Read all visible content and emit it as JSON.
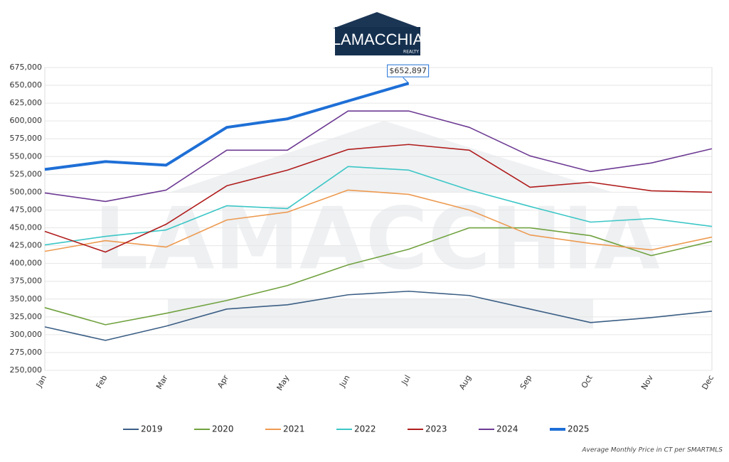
{
  "logo": {
    "name": "LAMACCHIA",
    "sub": "REALTY"
  },
  "chart_data": {
    "type": "line",
    "categories": [
      "Jan",
      "Feb",
      "Mar",
      "Apr",
      "May",
      "Jun",
      "Jul",
      "Aug",
      "Sep",
      "Oct",
      "Nov",
      "Dec"
    ],
    "ylim": [
      250000,
      675000
    ],
    "yticks": [
      {
        "value": 250000,
        "label": "250,000"
      },
      {
        "value": 275000,
        "label": "275,000"
      },
      {
        "value": 300000,
        "label": "300,000"
      },
      {
        "value": 325000,
        "label": "325,000"
      },
      {
        "value": 350000,
        "label": "350,000"
      },
      {
        "value": 375000,
        "label": "375,000"
      },
      {
        "value": 400000,
        "label": "400,000"
      },
      {
        "value": 425000,
        "label": "425,000"
      },
      {
        "value": 450000,
        "label": "450,000"
      },
      {
        "value": 475000,
        "label": "475,000"
      },
      {
        "value": 500000,
        "label": "500,000"
      },
      {
        "value": 525000,
        "label": "525,000"
      },
      {
        "value": 550000,
        "label": "550,000"
      },
      {
        "value": 575000,
        "label": "575,000"
      },
      {
        "value": 600000,
        "label": "600,000"
      },
      {
        "value": 625000,
        "label": "625,000"
      },
      {
        "value": 650000,
        "label": "650,000"
      },
      {
        "value": 675000,
        "label": "675,000"
      }
    ],
    "grid": true,
    "legend": "bottom",
    "series": [
      {
        "name": "2019",
        "color": "#3b5e84",
        "values": [
          311000,
          292000,
          312000,
          336000,
          342000,
          356000,
          361000,
          355000,
          336000,
          317000,
          324000,
          333000
        ]
      },
      {
        "name": "2020",
        "color": "#70a23f",
        "values": [
          338000,
          314000,
          330000,
          348000,
          369000,
          398000,
          420000,
          450000,
          450000,
          439000,
          411000,
          431000
        ]
      },
      {
        "name": "2021",
        "color": "#ed9a50",
        "values": [
          417000,
          432000,
          423000,
          461000,
          472000,
          503000,
          497000,
          475000,
          440000,
          428000,
          419000,
          437000
        ]
      },
      {
        "name": "2022",
        "color": "#3cc6c6",
        "values": [
          426000,
          438000,
          447000,
          481000,
          477000,
          536000,
          531000,
          503000,
          480000,
          458000,
          463000,
          452000
        ]
      },
      {
        "name": "2023",
        "color": "#b01c1c",
        "values": [
          445000,
          416000,
          455000,
          509000,
          531000,
          560000,
          567000,
          559000,
          507000,
          514000,
          502000,
          500000
        ]
      },
      {
        "name": "2024",
        "color": "#6d3a93",
        "values": [
          499000,
          487000,
          503000,
          559000,
          559000,
          614000,
          614000,
          591000,
          551000,
          529000,
          541000,
          561000
        ]
      },
      {
        "name": "2025",
        "color": "#1e6fd6",
        "width": 4,
        "values": [
          532000,
          543000,
          538000,
          591000,
          603000,
          628000,
          652897,
          null,
          null,
          null,
          null,
          null
        ],
        "value_labels": [
          null,
          null,
          null,
          null,
          null,
          null,
          "$652,897",
          null,
          null,
          null,
          null,
          null
        ]
      }
    ],
    "footnote": "Average Monthly Price in CT per SMARTMLS"
  }
}
